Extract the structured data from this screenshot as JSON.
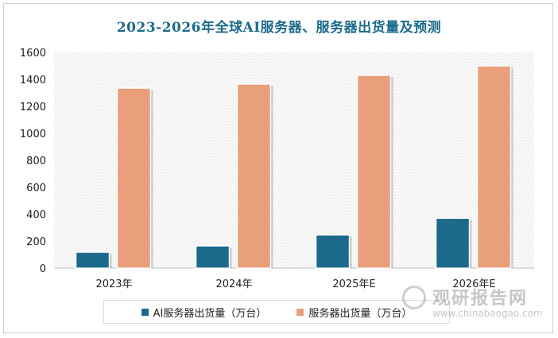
{
  "chart_data": {
    "type": "bar",
    "title": "2023-2026年全球AI服务器、服务器出货量及预测",
    "categories": [
      "2023年",
      "2024年",
      "2025年E",
      "2026年E"
    ],
    "series": [
      {
        "name": "AI服务器出货量（万台）",
        "values": [
          118,
          165,
          247,
          370
        ],
        "color": "#1b6a8c"
      },
      {
        "name": "服务器出货量（万台）",
        "values": [
          1335,
          1365,
          1430,
          1500
        ],
        "color": "#e9a07a"
      }
    ],
    "yticks": [
      "0",
      "200",
      "400",
      "600",
      "800",
      "1000",
      "1200",
      "1400",
      "1600"
    ],
    "ylim": [
      0,
      1600
    ],
    "legend_position": "bottom"
  },
  "watermark": {
    "cn": "观研报告网",
    "en": "www.chinabaogao.com"
  }
}
